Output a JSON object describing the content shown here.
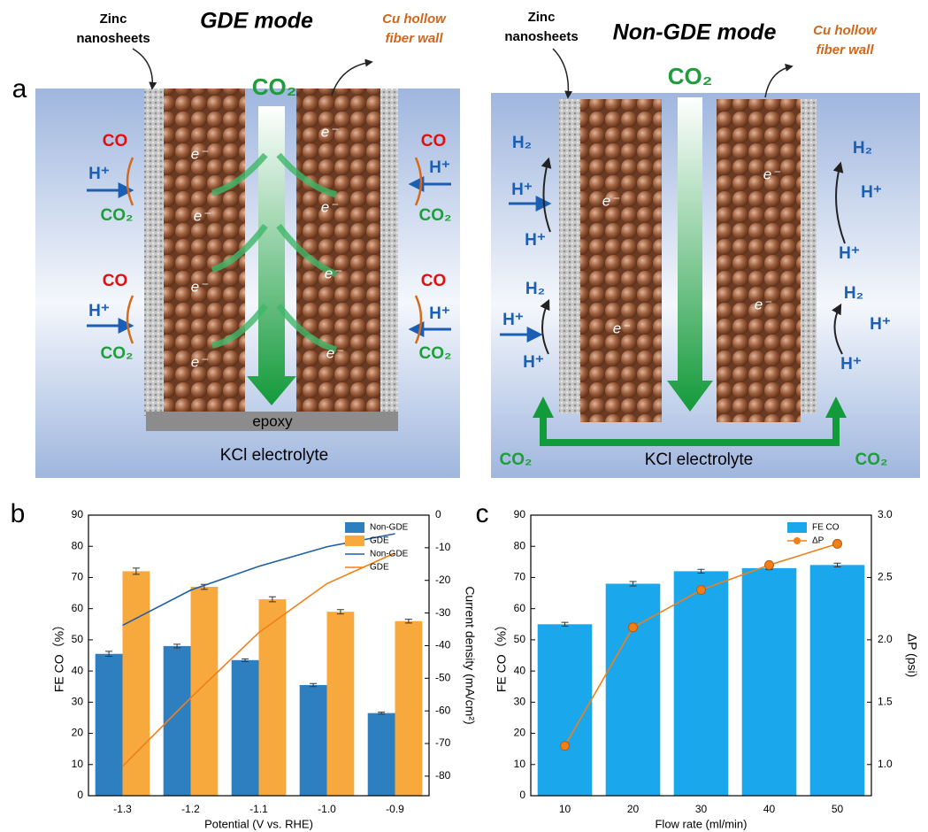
{
  "figure": {
    "panel_labels": [
      "a",
      "b",
      "c"
    ],
    "gde": {
      "title": "GDE mode",
      "zinc": [
        "Zinc",
        "nanosheets"
      ],
      "fiber": [
        "Cu hollow",
        "fiber wall"
      ],
      "labels": [
        "CO₂",
        "CO",
        "H⁺",
        "CO₂",
        "CO",
        "H⁺",
        "CO₂",
        "CO",
        "H⁺",
        "CO₂",
        "CO",
        "H⁺",
        "CO₂"
      ],
      "electrons": [
        "e⁻",
        "e⁻",
        "e⁻",
        "e⁻",
        "e⁻",
        "e⁻",
        "e⁻",
        "e⁻"
      ],
      "base": "epoxy",
      "electrolyte": "KCl electrolyte"
    },
    "non_gde": {
      "title": "Non-GDE mode",
      "zinc": [
        "Zinc",
        "nanosheets"
      ],
      "fiber": [
        "Cu hollow",
        "fiber wall"
      ],
      "labels": [
        "CO₂",
        "H₂",
        "H⁺",
        "H⁺",
        "H₂",
        "H⁺",
        "H⁺",
        "H₂",
        "H⁺",
        "H⁺",
        "H₂",
        "H⁺",
        "H⁺",
        "CO₂",
        "CO₂"
      ],
      "electrons": [
        "e⁻",
        "e⁻",
        "e⁻",
        "e⁻"
      ],
      "electrolyte": "KCl electrolyte"
    }
  },
  "chart_data": [
    {
      "type": "bar",
      "x_label": "Potential (V vs. RHE)",
      "y_label": "FE CO（%）",
      "y2_label": "Current density (mA/cm²)",
      "categories": [
        "-1.3",
        "-1.2",
        "-1.1",
        "-1.0",
        "-0.9"
      ],
      "ylim": [
        0,
        90
      ],
      "yticks": [
        0,
        10,
        20,
        30,
        40,
        50,
        60,
        70,
        80,
        90
      ],
      "y2lim": [
        -86,
        0
      ],
      "y2ticks": [
        0,
        -10,
        -20,
        -30,
        -40,
        -50,
        -60,
        -70,
        -80
      ],
      "legend": "upper right",
      "series": [
        {
          "name": "Non-GDE",
          "color": "#2e7fbf",
          "values": [
            45.5,
            48,
            43.5,
            35.5,
            26.5
          ],
          "errors": [
            0.8,
            0.6,
            0.4,
            0.5,
            0.3
          ]
        },
        {
          "name": "GDE",
          "color": "#f7a93e",
          "values": [
            72,
            67,
            63,
            59,
            56
          ],
          "errors": [
            1,
            0.8,
            0.8,
            0.7,
            0.6
          ]
        },
        {
          "name": "Non-GDE",
          "type": "line",
          "axis": "y2",
          "color": "#1f5fa6",
          "values": [
            -33.8,
            -23,
            -15.7,
            -9.7,
            -5.7
          ]
        },
        {
          "name": "GDE",
          "type": "line",
          "axis": "y2",
          "color": "#f07f1a",
          "values": [
            -77,
            -56,
            -36,
            -21,
            -11.6
          ]
        }
      ]
    },
    {
      "type": "bar",
      "x_label": "Flow rate (ml/min)",
      "y_label": "FE CO（%）",
      "y2_label": "ΔP (psi)",
      "categories": [
        "10",
        "20",
        "30",
        "40",
        "50"
      ],
      "ylim": [
        0,
        90
      ],
      "yticks": [
        0,
        10,
        20,
        30,
        40,
        50,
        60,
        70,
        80,
        90
      ],
      "y2lim": [
        0.75,
        3.0
      ],
      "y2ticks": [
        {
          "value": 1,
          "label": "1.0"
        },
        1.5,
        {
          "value": 2,
          "label": "2.0"
        },
        2.5,
        {
          "value": 3,
          "label": "3.0"
        }
      ],
      "legend": "upper right",
      "series": [
        {
          "name": "FE CO",
          "color": "#1aa7ec",
          "values": [
            55,
            68,
            72,
            73,
            74
          ],
          "errors": [
            0.6,
            0.7,
            0.6,
            0.5,
            0.6
          ]
        },
        {
          "name": "ΔP",
          "type": "line",
          "axis": "y2",
          "marker": true,
          "color": "#f07f1a",
          "values": [
            1.15,
            2.1,
            2.4,
            2.6,
            2.77
          ]
        }
      ]
    }
  ]
}
